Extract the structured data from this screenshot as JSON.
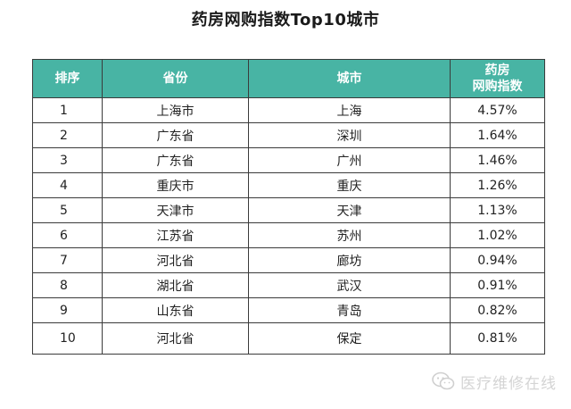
{
  "chart_data": {
    "type": "table",
    "title": "药房网购指数Top10城市",
    "columns": [
      "排序",
      "省份",
      "城市",
      "药房|网购指数"
    ],
    "rows": [
      {
        "rank": "1",
        "province": "上海市",
        "city": "上海",
        "index": "4.57%"
      },
      {
        "rank": "2",
        "province": "广东省",
        "city": "深圳",
        "index": "1.64%"
      },
      {
        "rank": "3",
        "province": "广东省",
        "city": "广州",
        "index": "1.46%"
      },
      {
        "rank": "4",
        "province": "重庆市",
        "city": "重庆",
        "index": "1.26%"
      },
      {
        "rank": "5",
        "province": "天津市",
        "city": "天津",
        "index": "1.13%"
      },
      {
        "rank": "6",
        "province": "江苏省",
        "city": "苏州",
        "index": "1.02%"
      },
      {
        "rank": "7",
        "province": "河北省",
        "city": "廊坊",
        "index": "0.94%"
      },
      {
        "rank": "8",
        "province": "湖北省",
        "city": "武汉",
        "index": "0.91%"
      },
      {
        "rank": "9",
        "province": "山东省",
        "city": "青岛",
        "index": "0.82%"
      },
      {
        "rank": "10",
        "province": "河北省",
        "city": "保定",
        "index": "0.81%"
      }
    ]
  },
  "header": {
    "rank": "排序",
    "province": "省份",
    "city": "城市",
    "index_line1": "药房",
    "index_line2": "网购指数"
  },
  "watermark": {
    "text": "医疗维修在线",
    "icon": "wechat-icon"
  },
  "colors": {
    "header_bg": "#48b4a4",
    "header_text": "#ffffff",
    "border": "#3b3b3b"
  }
}
